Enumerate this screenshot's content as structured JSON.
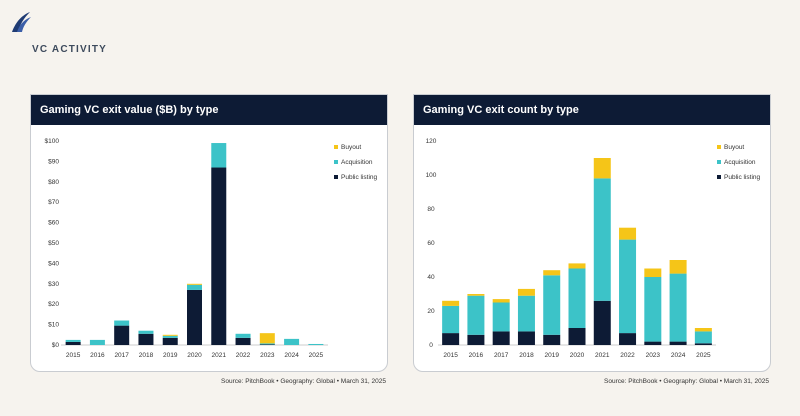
{
  "section_title": "VC ACTIVITY",
  "colors": {
    "buyout": "#f5c518",
    "acquisition": "#3cc3c8",
    "public_listing": "#0d1b35",
    "header_bg": "#0d1b35"
  },
  "chart_data": [
    {
      "type": "bar",
      "stacked": true,
      "title": "Gaming VC exit value ($B) by type",
      "categories": [
        "2015",
        "2016",
        "2017",
        "2018",
        "2019",
        "2020",
        "2021",
        "2022",
        "2023",
        "2024",
        "2025"
      ],
      "series": [
        {
          "name": "Public listing",
          "values": [
            1.5,
            0,
            9.5,
            5.5,
            3.5,
            27,
            87,
            3.5,
            0.3,
            0,
            0
          ]
        },
        {
          "name": "Acquisition",
          "values": [
            1,
            2.5,
            2.5,
            1.5,
            1,
            2.5,
            12,
            2,
            0.5,
            3,
            0.5
          ]
        },
        {
          "name": "Buyout",
          "values": [
            0,
            0,
            0,
            0,
            0.5,
            0.5,
            0,
            0,
            5,
            0,
            0
          ]
        }
      ],
      "legend_order": [
        "Buyout",
        "Acquisition",
        "Public listing"
      ],
      "ylim": [
        0,
        100
      ],
      "yticks": [
        0,
        10,
        20,
        30,
        40,
        50,
        60,
        70,
        80,
        90,
        100
      ],
      "ytick_labels": [
        "$0",
        "$10",
        "$20",
        "$30",
        "$40",
        "$50",
        "$60",
        "$70",
        "$80",
        "$90",
        "$100"
      ],
      "legend_position": "top-right",
      "grid": false,
      "source": "Source: PitchBook  •  Geography: Global  •  March 31, 2025"
    },
    {
      "type": "bar",
      "stacked": true,
      "title": "Gaming VC exit count by type",
      "categories": [
        "2015",
        "2016",
        "2017",
        "2018",
        "2019",
        "2020",
        "2021",
        "2022",
        "2023",
        "2024",
        "2025"
      ],
      "series": [
        {
          "name": "Public listing",
          "values": [
            7,
            6,
            8,
            8,
            6,
            10,
            26,
            7,
            2,
            2,
            1
          ]
        },
        {
          "name": "Acquisition",
          "values": [
            16,
            23,
            17,
            21,
            35,
            35,
            72,
            55,
            38,
            40,
            7
          ]
        },
        {
          "name": "Buyout",
          "values": [
            3,
            1,
            2,
            4,
            3,
            3,
            12,
            7,
            5,
            8,
            2
          ]
        }
      ],
      "legend_order": [
        "Buyout",
        "Acquisition",
        "Public listing"
      ],
      "ylim": [
        0,
        120
      ],
      "yticks": [
        0,
        20,
        40,
        60,
        80,
        100,
        120
      ],
      "ytick_labels": [
        "0",
        "20",
        "40",
        "60",
        "80",
        "100",
        "120"
      ],
      "legend_position": "top-right",
      "grid": false,
      "source": "Source: PitchBook  •  Geography: Global  •  March 31, 2025"
    }
  ]
}
